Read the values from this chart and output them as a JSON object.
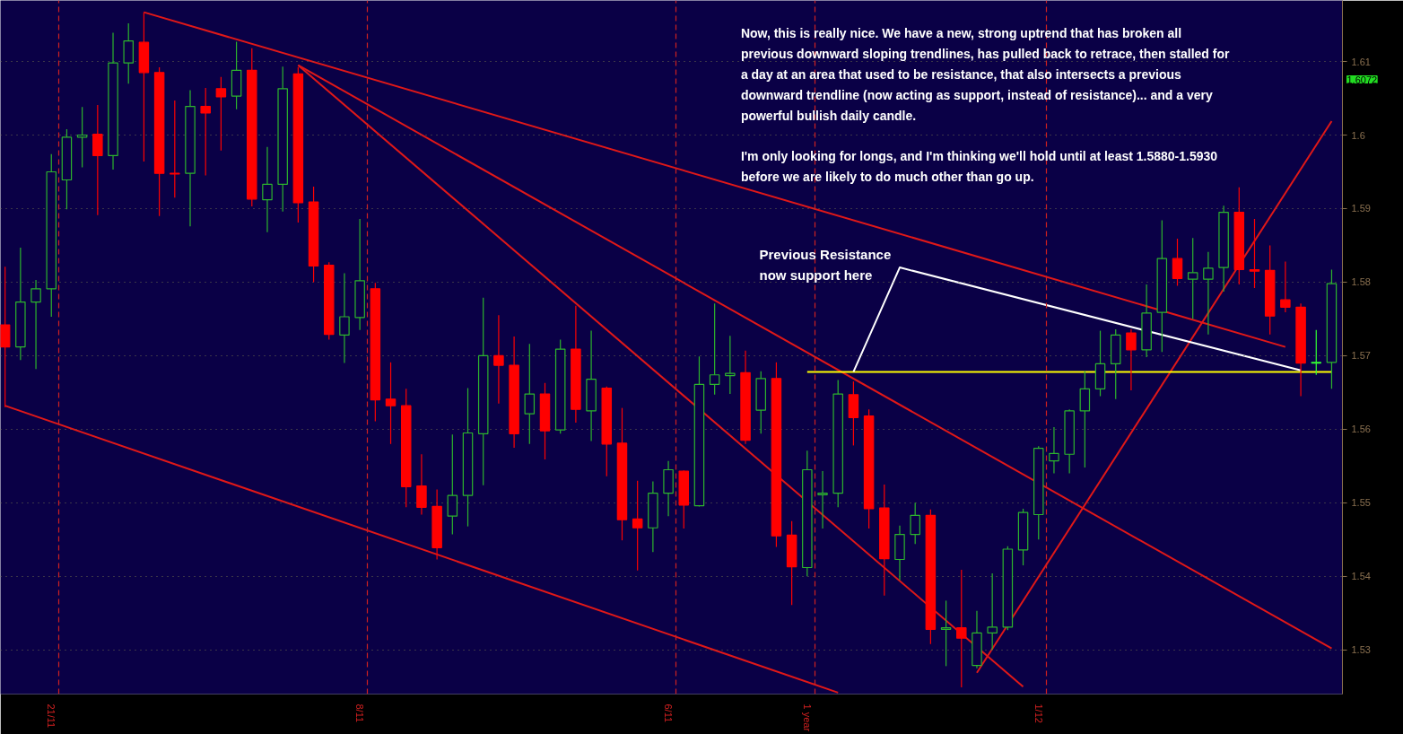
{
  "chart_data": {
    "type": "candlestick",
    "categories": [
      null,
      null,
      null,
      "21/11",
      null,
      null,
      null,
      null,
      null,
      null,
      null,
      null,
      null,
      null,
      null,
      null,
      null,
      null,
      null,
      null,
      null,
      null,
      null,
      "8/11",
      null,
      null,
      null,
      null,
      null,
      null,
      null,
      null,
      null,
      null,
      null,
      null,
      null,
      null,
      null,
      null,
      null,
      null,
      null,
      "6/11",
      null,
      null,
      null,
      null,
      null,
      null,
      null,
      null,
      "1 year",
      null,
      null,
      null,
      null,
      null,
      null,
      null,
      null,
      null,
      null,
      null,
      null,
      null,
      null,
      "1/12",
      null,
      null,
      null,
      null,
      null,
      null,
      null,
      null,
      null,
      null,
      null,
      null,
      null,
      null,
      null,
      null,
      null,
      null,
      null
    ],
    "ohlc": [
      [
        1.5742,
        1.5821,
        1.563,
        1.5712
      ],
      [
        1.5712,
        1.5847,
        1.5694,
        1.5773
      ],
      [
        1.5773,
        1.5803,
        1.5682,
        1.5791
      ],
      [
        1.5791,
        1.5974,
        1.5753,
        1.595
      ],
      [
        1.5939,
        1.6008,
        1.5899,
        1.5997
      ],
      [
        1.5997,
        1.6038,
        1.5956,
        1.6
      ],
      [
        1.6001,
        1.6041,
        1.5891,
        1.5972
      ],
      [
        1.5972,
        1.6139,
        1.5953,
        1.6098
      ],
      [
        1.6098,
        1.6152,
        1.607,
        1.6128
      ],
      [
        1.6126,
        1.6167,
        1.5964,
        1.6085
      ],
      [
        1.6085,
        1.6092,
        1.589,
        1.5948
      ],
      [
        1.5948,
        1.6047,
        1.5915,
        1.5947
      ],
      [
        1.5948,
        1.6061,
        1.5876,
        1.6039
      ],
      [
        1.6039,
        1.6064,
        1.5945,
        1.603
      ],
      [
        1.6063,
        1.6079,
        1.5979,
        1.6052
      ],
      [
        1.6053,
        1.6127,
        1.6035,
        1.6088
      ],
      [
        1.6088,
        1.6118,
        1.5903,
        1.5913
      ],
      [
        1.5912,
        1.5984,
        1.5868,
        1.5933
      ],
      [
        1.5933,
        1.6093,
        1.5896,
        1.6063
      ],
      [
        1.6083,
        1.6092,
        1.5881,
        1.5908
      ],
      [
        1.5909,
        1.593,
        1.58,
        1.5822
      ],
      [
        1.5823,
        1.5827,
        1.5722,
        1.5729
      ],
      [
        1.5728,
        1.5812,
        1.569,
        1.5753
      ],
      [
        1.5752,
        1.5886,
        1.5735,
        1.5802
      ],
      [
        1.5791,
        1.5799,
        1.5611,
        1.564
      ],
      [
        1.5641,
        1.5691,
        1.558,
        1.5632
      ],
      [
        1.5632,
        1.5655,
        1.5494,
        1.5522
      ],
      [
        1.5523,
        1.5566,
        1.5484,
        1.5494
      ],
      [
        1.5495,
        1.5518,
        1.5423,
        1.5439
      ],
      [
        1.5482,
        1.5593,
        1.5457,
        1.551
      ],
      [
        1.551,
        1.5656,
        1.5468,
        1.5595
      ],
      [
        1.5594,
        1.5779,
        1.5524,
        1.57
      ],
      [
        1.57,
        1.5755,
        1.5635,
        1.5687
      ],
      [
        1.5687,
        1.5726,
        1.5575,
        1.5594
      ],
      [
        1.5621,
        1.5716,
        1.558,
        1.5648
      ],
      [
        1.5648,
        1.5663,
        1.5559,
        1.5598
      ],
      [
        1.5599,
        1.5722,
        1.5594,
        1.5709
      ],
      [
        1.5709,
        1.5768,
        1.5609,
        1.5627
      ],
      [
        1.5625,
        1.5734,
        1.5584,
        1.5668
      ],
      [
        1.5656,
        1.5658,
        1.5536,
        1.558
      ],
      [
        1.5581,
        1.5629,
        1.5449,
        1.5477
      ],
      [
        1.5478,
        1.553,
        1.5408,
        1.5466
      ],
      [
        1.5466,
        1.5529,
        1.5433,
        1.5513
      ],
      [
        1.5513,
        1.5557,
        1.5482,
        1.5545
      ],
      [
        1.5543,
        1.5544,
        1.5465,
        1.5497
      ],
      [
        1.5496,
        1.5699,
        1.5495,
        1.5661
      ],
      [
        1.5661,
        1.5771,
        1.5647,
        1.5674
      ],
      [
        1.5673,
        1.5727,
        1.5648,
        1.5676
      ],
      [
        1.5677,
        1.5707,
        1.558,
        1.5585
      ],
      [
        1.5626,
        1.5679,
        1.5594,
        1.5669
      ],
      [
        1.5669,
        1.5691,
        1.544,
        1.5455
      ],
      [
        1.5456,
        1.5475,
        1.5361,
        1.5413
      ],
      [
        1.5412,
        1.5571,
        1.54,
        1.5545
      ],
      [
        1.5511,
        1.5543,
        1.5465,
        1.5513
      ],
      [
        1.5513,
        1.5667,
        1.5494,
        1.5648
      ],
      [
        1.5647,
        1.5665,
        1.5578,
        1.5616
      ],
      [
        1.5618,
        1.5627,
        1.5465,
        1.5492
      ],
      [
        1.5493,
        1.5525,
        1.5374,
        1.5424
      ],
      [
        1.5423,
        1.5469,
        1.5395,
        1.5457
      ],
      [
        1.5457,
        1.55,
        1.5444,
        1.5483
      ],
      [
        1.5483,
        1.5491,
        1.5308,
        1.5328
      ],
      [
        1.5328,
        1.5367,
        1.5278,
        1.533
      ],
      [
        1.533,
        1.5409,
        1.5249,
        1.5316
      ],
      [
        1.5279,
        1.5353,
        1.5275,
        1.5323
      ],
      [
        1.5323,
        1.5404,
        1.53,
        1.5331
      ],
      [
        1.5331,
        1.5441,
        1.5327,
        1.5437
      ],
      [
        1.5436,
        1.5492,
        1.5415,
        1.5487
      ],
      [
        1.5484,
        1.5577,
        1.545,
        1.5574
      ],
      [
        1.5557,
        1.5603,
        1.554,
        1.5567
      ],
      [
        1.5566,
        1.5627,
        1.554,
        1.5625
      ],
      [
        1.5625,
        1.5679,
        1.5548,
        1.5655
      ],
      [
        1.5655,
        1.5734,
        1.5645,
        1.5689
      ],
      [
        1.5689,
        1.5736,
        1.5641,
        1.5728
      ],
      [
        1.5731,
        1.5736,
        1.5653,
        1.5708
      ],
      [
        1.5708,
        1.5797,
        1.5698,
        1.5758
      ],
      [
        1.5759,
        1.5884,
        1.5705,
        1.5832
      ],
      [
        1.5832,
        1.5859,
        1.5795,
        1.5805
      ],
      [
        1.5804,
        1.586,
        1.575,
        1.5813
      ],
      [
        1.5804,
        1.5841,
        1.5729,
        1.5819
      ],
      [
        1.582,
        1.5904,
        1.5787,
        1.5895
      ],
      [
        1.5895,
        1.5929,
        1.5797,
        1.5817
      ],
      [
        1.5817,
        1.5886,
        1.5792,
        1.5815
      ],
      [
        1.5816,
        1.585,
        1.5729,
        1.5754
      ],
      [
        1.5776,
        1.5828,
        1.5759,
        1.5766
      ],
      [
        1.5766,
        1.5771,
        1.5645,
        1.569
      ],
      [
        1.569,
        1.5735,
        1.5674,
        1.5691
      ],
      [
        1.5691,
        1.5817,
        1.5655,
        1.5798
      ]
    ],
    "colors": [
      "#ff0000",
      "#2db42d",
      "#2db42d",
      "#2db42d",
      "#2db42d",
      "#2db42d",
      "#ff0000",
      "#2db42d",
      "#2db42d",
      "#ff0000",
      "#ff0000",
      "#ff0000",
      "#2db42d",
      "#ff0000",
      "#ff0000",
      "#2db42d",
      "#ff0000",
      "#2db42d",
      "#2db42d",
      "#ff0000",
      "#ff0000",
      "#ff0000",
      "#2db42d",
      "#2db42d",
      "#ff0000",
      "#ff0000",
      "#ff0000",
      "#ff0000",
      "#ff0000",
      "#2db42d",
      "#2db42d",
      "#2db42d",
      "#ff0000",
      "#ff0000",
      "#2db42d",
      "#ff0000",
      "#2db42d",
      "#ff0000",
      "#2db42d",
      "#ff0000",
      "#ff0000",
      "#ff0000",
      "#2db42d",
      "#2db42d",
      "#ff0000",
      "#2db42d",
      "#2db42d",
      "#2db42d",
      "#ff0000",
      "#2db42d",
      "#ff0000",
      "#ff0000",
      "#2db42d",
      "#2db42d",
      "#2db42d",
      "#ff0000",
      "#ff0000",
      "#ff0000",
      "#2db42d",
      "#2db42d",
      "#ff0000",
      "#2db42d",
      "#ff0000",
      "#2db42d",
      "#2db42d",
      "#2db42d",
      "#2db42d",
      "#2db42d",
      "#2db42d",
      "#2db42d",
      "#2db42d",
      "#2db42d",
      "#2db42d",
      "#ff0000",
      "#2db42d",
      "#2db42d",
      "#ff0000",
      "#2db42d",
      "#2db42d",
      "#2db42d",
      "#ff0000",
      "#ff0000",
      "#ff0000",
      "#ff0000",
      "#ff0000",
      "#33ff33",
      "#2db42d"
    ],
    "series": [
      {
        "type": "line",
        "color": "#e01818",
        "values": [
          null,
          null,
          null,
          null,
          null,
          null,
          null,
          null,
          null,
          1.6167,
          null,
          null,
          null,
          null,
          null,
          null,
          null,
          null,
          null,
          null,
          null,
          null,
          null,
          null,
          null,
          null,
          null,
          null,
          null,
          null,
          null,
          null,
          null,
          null,
          null,
          null,
          null,
          null,
          null,
          null,
          null,
          null,
          null,
          null,
          null,
          null,
          null,
          null,
          null,
          null,
          null,
          null,
          null,
          null,
          null,
          null,
          null,
          null,
          null,
          null,
          null,
          null,
          null,
          null,
          null,
          null,
          null,
          null,
          null,
          null,
          null,
          null,
          null,
          null,
          null,
          null,
          null,
          null,
          null,
          null,
          null,
          null,
          null,
          1.5712,
          null,
          null,
          null
        ]
      },
      {
        "type": "line",
        "color": "#e01818",
        "values": [
          null,
          null,
          null,
          null,
          null,
          null,
          null,
          null,
          null,
          null,
          null,
          null,
          null,
          null,
          null,
          null,
          null,
          null,
          null,
          1.6095,
          null,
          null,
          null,
          null,
          null,
          null,
          null,
          null,
          null,
          null,
          null,
          null,
          null,
          null,
          null,
          null,
          null,
          null,
          null,
          null,
          null,
          null,
          null,
          null,
          null,
          null,
          null,
          null,
          null,
          null,
          null,
          null,
          null,
          null,
          null,
          null,
          null,
          null,
          null,
          null,
          null,
          null,
          null,
          null,
          null,
          null,
          null,
          null,
          null,
          null,
          null,
          null,
          null,
          null,
          null,
          null,
          null,
          null,
          null,
          null,
          null,
          null,
          null,
          null,
          null,
          null,
          1.5302
        ]
      },
      {
        "type": "line",
        "color": "#e01818",
        "values": [
          null,
          null,
          null,
          null,
          null,
          null,
          null,
          null,
          null,
          null,
          null,
          null,
          null,
          null,
          null,
          null,
          null,
          null,
          null,
          1.6095,
          null,
          null,
          null,
          null,
          null,
          null,
          null,
          null,
          null,
          null,
          null,
          null,
          null,
          null,
          null,
          null,
          null,
          null,
          null,
          null,
          null,
          null,
          null,
          null,
          null,
          null,
          null,
          null,
          null,
          null,
          null,
          null,
          null,
          null,
          null,
          null,
          null,
          null,
          null,
          null,
          null,
          null,
          null,
          null,
          null,
          null,
          1.525,
          null,
          null,
          null,
          null,
          null,
          null,
          null,
          null,
          null,
          null,
          null,
          null,
          null,
          null,
          null,
          null,
          null,
          null,
          null,
          null
        ]
      },
      {
        "type": "line",
        "color": "#e01818",
        "values": [
          1.5632,
          null,
          null,
          null,
          null,
          null,
          null,
          null,
          null,
          null,
          null,
          null,
          null,
          null,
          null,
          null,
          null,
          null,
          null,
          null,
          null,
          null,
          null,
          null,
          null,
          null,
          null,
          null,
          null,
          null,
          null,
          null,
          null,
          null,
          null,
          null,
          null,
          null,
          null,
          null,
          null,
          null,
          null,
          null,
          null,
          null,
          null,
          null,
          null,
          null,
          null,
          null,
          null,
          null,
          1.5242,
          null,
          null,
          null,
          null,
          null,
          null,
          null,
          null,
          null,
          null,
          null,
          null,
          null,
          null,
          null,
          null,
          null,
          null,
          null,
          null,
          null,
          null,
          null,
          null,
          null,
          null,
          null,
          null,
          null,
          null,
          null,
          null
        ]
      },
      {
        "type": "line",
        "color": "#e01818",
        "values": [
          null,
          null,
          null,
          null,
          null,
          null,
          null,
          null,
          null,
          null,
          null,
          null,
          null,
          null,
          null,
          null,
          null,
          null,
          null,
          null,
          null,
          null,
          null,
          null,
          null,
          null,
          null,
          null,
          null,
          null,
          null,
          null,
          null,
          null,
          null,
          null,
          null,
          null,
          null,
          null,
          null,
          null,
          null,
          null,
          null,
          null,
          null,
          null,
          null,
          null,
          null,
          null,
          null,
          null,
          null,
          null,
          null,
          null,
          null,
          null,
          null,
          null,
          null,
          1.5269,
          null,
          null,
          null,
          null,
          null,
          null,
          null,
          null,
          null,
          null,
          null,
          null,
          null,
          null,
          null,
          null,
          null,
          null,
          null,
          null,
          null,
          null,
          1.6019
        ]
      },
      {
        "type": "line",
        "color": "#ffff00",
        "values": [
          null,
          null,
          null,
          null,
          null,
          null,
          null,
          null,
          null,
          null,
          null,
          null,
          null,
          null,
          null,
          null,
          null,
          null,
          null,
          null,
          null,
          null,
          null,
          null,
          null,
          null,
          null,
          null,
          null,
          null,
          null,
          null,
          null,
          null,
          null,
          null,
          null,
          null,
          null,
          null,
          null,
          null,
          null,
          null,
          null,
          null,
          null,
          null,
          null,
          null,
          null,
          null,
          1.5678,
          null,
          null,
          null,
          null,
          null,
          null,
          null,
          null,
          null,
          null,
          null,
          null,
          null,
          null,
          null,
          null,
          null,
          null,
          null,
          null,
          null,
          null,
          null,
          null,
          null,
          null,
          null,
          null,
          null,
          null,
          null,
          null,
          null,
          1.5678
        ]
      },
      {
        "type": "line",
        "color": "#ffffff",
        "values": [
          null,
          null,
          null,
          null,
          null,
          null,
          null,
          null,
          null,
          null,
          null,
          null,
          null,
          null,
          null,
          null,
          null,
          null,
          null,
          null,
          null,
          null,
          null,
          null,
          null,
          null,
          null,
          null,
          null,
          null,
          null,
          null,
          null,
          null,
          null,
          null,
          null,
          null,
          null,
          null,
          null,
          null,
          null,
          null,
          null,
          null,
          null,
          null,
          null,
          null,
          null,
          null,
          null,
          null,
          null,
          1.5678,
          null,
          null,
          1.582,
          null,
          null,
          null,
          null,
          null,
          null,
          null,
          null,
          null,
          null,
          null,
          null,
          null,
          null,
          null,
          null,
          null,
          null,
          null,
          null,
          null,
          null,
          null,
          null,
          null,
          1.568,
          null,
          null
        ]
      }
    ],
    "ylim": [
      1.524,
      1.6183
    ],
    "yticks": [
      1.53,
      1.54,
      1.55,
      1.56,
      1.57,
      1.58,
      1.59,
      1.6,
      1.61
    ],
    "grid": true,
    "annotations": [
      "Now, this is really nice. We have a new, strong uptrend that has broken all\nprevious downward sloping trendlines, has pulled back to retrace, then stalled for\na day at an area that used to be resistance, that also intersects a previous\ndownward trendline (now acting as support, instead of resistance)... and a very\npowerful bullish daily candle.",
      "I'm only looking for longs, and I'm thinking we'll hold until at least 1.5880-1.5930\nbefore we are likely to do much other than go up.",
      "Previous Resistance\nnow support here",
      "1.6072"
    ]
  }
}
